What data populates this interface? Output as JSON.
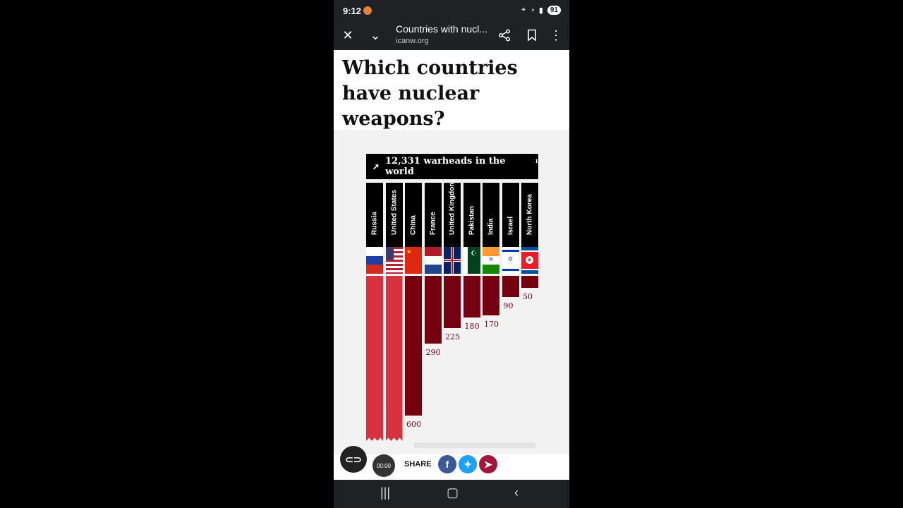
{
  "status": {
    "time": "9:12",
    "battery": "91"
  },
  "toolbar": {
    "title": "Countries with nucl...",
    "url": "icanw.org"
  },
  "article": {
    "headline": "Which countries have nuclear weapons?"
  },
  "graphic": {
    "total_text": "12,331 warheads in the world",
    "footnote": "1"
  },
  "chart_data": {
    "type": "bar",
    "categories": [
      "Russia",
      "United States",
      "China",
      "France",
      "United Kingdom",
      "Pakistan",
      "India",
      "Israel",
      "North Korea"
    ],
    "values": [
      null,
      null,
      600,
      290,
      225,
      180,
      170,
      90,
      50
    ],
    "value_labels": [
      "",
      "",
      "600",
      "290",
      "225",
      "180",
      "170",
      "90",
      "50"
    ],
    "colors": {
      "major": "#d8323f",
      "other": "#75000f"
    }
  },
  "share": {
    "label": "SHARE",
    "timer": "00:00"
  },
  "icons": [
    "close-icon",
    "chevron-down-icon",
    "share-icon",
    "bookmark-icon",
    "more-icon",
    "rocket-icon",
    "link-icon",
    "facebook-icon",
    "twitter-icon",
    "telegram-icon"
  ]
}
